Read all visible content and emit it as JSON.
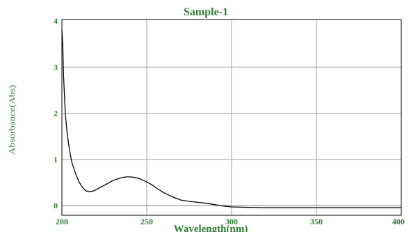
{
  "chart_data": {
    "type": "line",
    "title": "Sample-1",
    "xlabel": "Wavelength(nm)",
    "ylabel": "Absorbance(Abs)",
    "xlim": [
      200,
      400
    ],
    "ylim": [
      -0.1,
      4
    ],
    "x_ticks": [
      "200",
      "250",
      "300",
      "350",
      "400"
    ],
    "y_ticks": [
      "4",
      "3",
      "2",
      "1",
      "0"
    ],
    "grid": true,
    "colors": {
      "text": "#2e7d32",
      "line": "#000000",
      "grid": "#a0a0a0",
      "frame": "#000000",
      "zero_line": "#808080"
    },
    "series": [
      {
        "x": [
          200,
          200.5,
          201,
          202,
          203,
          204,
          205,
          206,
          208,
          210,
          212,
          214,
          216,
          218,
          220,
          222,
          225,
          228,
          230,
          233,
          236,
          238,
          240,
          243,
          246,
          250,
          253,
          256,
          260,
          265,
          270,
          275,
          280,
          285,
          290,
          295,
          300,
          310,
          320,
          330,
          340,
          350,
          360,
          370,
          380,
          390,
          400
        ],
        "y": [
          3.8,
          3.5,
          2.8,
          2.0,
          1.6,
          1.32,
          1.1,
          0.92,
          0.7,
          0.52,
          0.4,
          0.32,
          0.3,
          0.31,
          0.34,
          0.38,
          0.44,
          0.5,
          0.54,
          0.58,
          0.61,
          0.62,
          0.62,
          0.61,
          0.58,
          0.51,
          0.45,
          0.37,
          0.28,
          0.19,
          0.12,
          0.09,
          0.07,
          0.05,
          0.02,
          -0.01,
          -0.03,
          -0.04,
          -0.045,
          -0.045,
          -0.045,
          -0.045,
          -0.045,
          -0.045,
          -0.045,
          -0.045,
          -0.045
        ]
      }
    ]
  }
}
